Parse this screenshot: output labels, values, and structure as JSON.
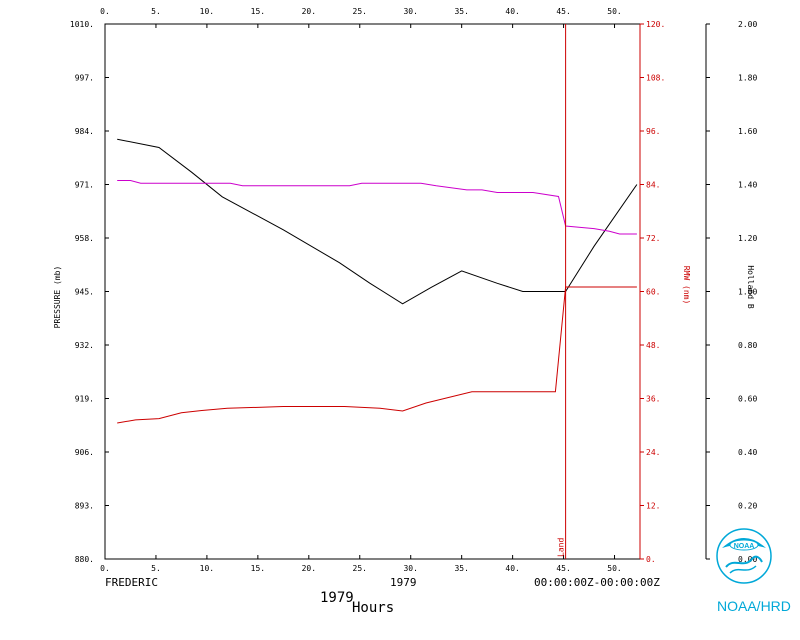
{
  "chart_data": {
    "type": "line",
    "storm_name": "FREDERIC",
    "year_center": "1979",
    "time_range": "00:00:00Z-00:00:00Z",
    "year_label": "1979",
    "xlabel": "Hours",
    "ylabel_left": "PRESSURE (mb)",
    "ylabel_right_rmw": "RMW (nm)",
    "ylabel_right_b": "Holland B",
    "landfall_label": "Land",
    "landfall_hour": 45.2,
    "xlim": [
      0,
      52.5
    ],
    "pressure_lim": [
      880,
      1010
    ],
    "rmw_lim": [
      0,
      120
    ],
    "b_lim": [
      0,
      2.0
    ],
    "x_ticks": [
      "0.",
      "5.",
      "10.",
      "15.",
      "20.",
      "25.",
      "30.",
      "35.",
      "40.",
      "45.",
      "50."
    ],
    "x_tick_values": [
      0,
      5,
      10,
      15,
      20,
      25,
      30,
      35,
      40,
      45,
      50
    ],
    "pressure_ticks": [
      "880.",
      "893.",
      "906.",
      "919.",
      "932.",
      "945.",
      "958.",
      "971.",
      "984.",
      "997.",
      "1010."
    ],
    "pressure_tick_values": [
      880,
      893,
      906,
      919,
      932,
      945,
      958,
      971,
      984,
      997,
      1010
    ],
    "rmw_ticks": [
      "0.",
      "12.",
      "24.",
      "36.",
      "48.",
      "60.",
      "72.",
      "84.",
      "96.",
      "108.",
      "120."
    ],
    "rmw_tick_values": [
      0,
      12,
      24,
      36,
      48,
      60,
      72,
      84,
      96,
      108,
      120
    ],
    "b_ticks": [
      "0.00",
      "0.20",
      "0.40",
      "0.60",
      "0.80",
      "1.00",
      "1.20",
      "1.40",
      "1.60",
      "1.80",
      "2.00"
    ],
    "b_tick_values": [
      0,
      0.2,
      0.4,
      0.6,
      0.8,
      1.0,
      1.2,
      1.4,
      1.6,
      1.8,
      2.0
    ],
    "series": [
      {
        "axis": "pressure",
        "color": "#000000",
        "x": [
          1.2,
          5.3,
          8.5,
          11.5,
          17.5,
          23.0,
          26.0,
          29.2,
          32.0,
          35.0,
          38.5,
          41.0,
          45.2,
          48.0,
          52.2
        ],
        "y": [
          982,
          980,
          974,
          968,
          960,
          952,
          947,
          942,
          946,
          950,
          947,
          945,
          945,
          956,
          971
        ]
      },
      {
        "axis": "b",
        "color": "#cc00cc",
        "x": [
          1.2,
          2.5,
          3.5,
          12.3,
          13.5,
          24.0,
          25.2,
          31.0,
          32.5,
          35.5,
          37.0,
          38.5,
          42.0,
          44.5,
          45.2,
          46.5,
          48.0,
          49.5,
          50.5,
          52.2
        ],
        "y": [
          1.415,
          1.415,
          1.405,
          1.405,
          1.395,
          1.395,
          1.405,
          1.405,
          1.395,
          1.38,
          1.38,
          1.37,
          1.37,
          1.355,
          1.245,
          1.24,
          1.235,
          1.225,
          1.215,
          1.215
        ]
      },
      {
        "axis": "rmw",
        "color": "#cc0000",
        "x": [
          1.2,
          3.0,
          5.3,
          7.5,
          9.5,
          12.0,
          17.5,
          23.5,
          27.0,
          29.2,
          31.5,
          36.0,
          44.2,
          45.2,
          52.2
        ],
        "y": [
          30.5,
          31.2,
          31.5,
          32.8,
          33.3,
          33.8,
          34.2,
          34.2,
          33.8,
          33.2,
          35.0,
          37.5,
          37.5,
          61.0,
          61.0
        ]
      }
    ]
  },
  "logo": {
    "text": "NOAA",
    "caption": "NOAA/HRD"
  },
  "colors": {
    "pressure": "#000000",
    "rmw": "#cc0000",
    "holland_b": "#cc00cc",
    "logo": "#00a8d8"
  }
}
